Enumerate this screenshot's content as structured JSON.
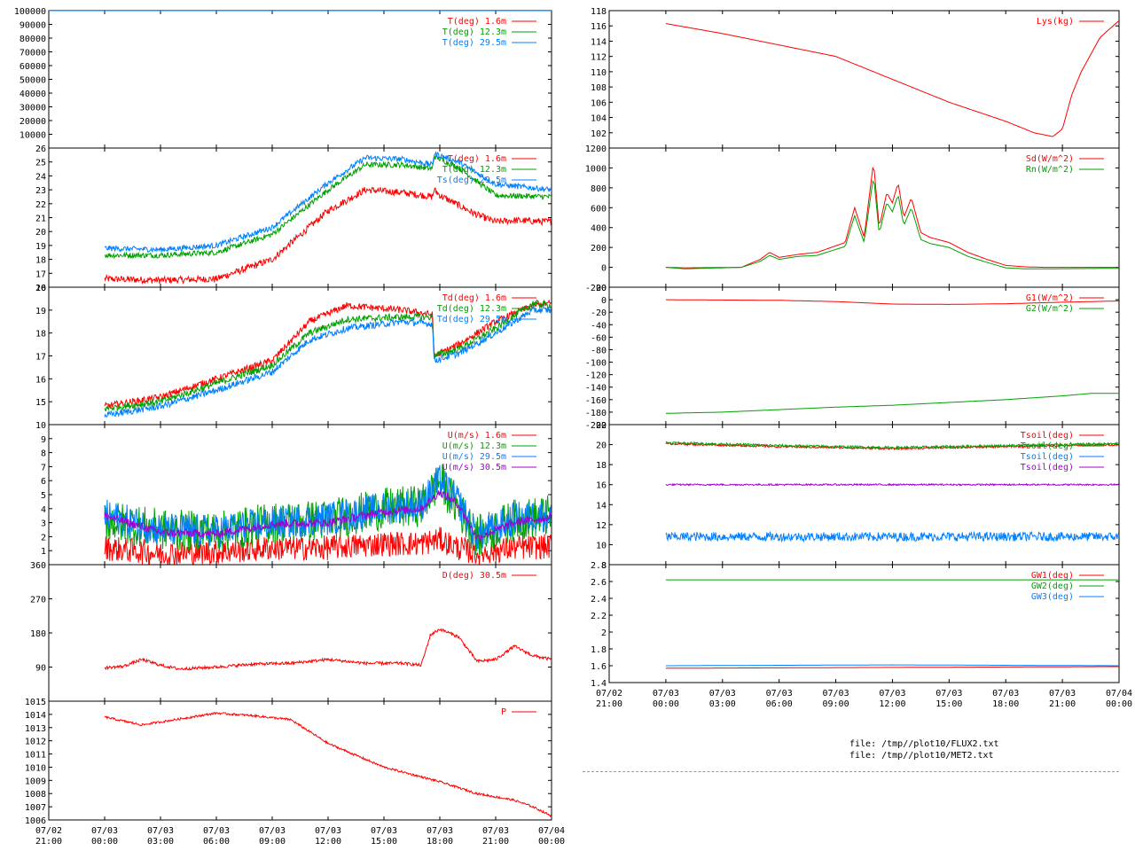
{
  "files": [
    "file: /tmp//plot10/FLUX2.txt",
    "file: /tmp//plot10/MET2.txt"
  ],
  "colors": {
    "red": "#ff0000",
    "green": "#00a000",
    "blue": "#0080ff",
    "purple": "#a000d0",
    "frame": "#000000"
  },
  "chart_data": [
    {
      "type": "line",
      "column": "left",
      "row": 0,
      "ylim": [
        0,
        100000
      ],
      "yticks": [
        "10000",
        "20000",
        "30000",
        "40000",
        "50000",
        "60000",
        "70000",
        "80000",
        "90000",
        "100000"
      ],
      "xlim": [
        -3,
        24
      ],
      "series": [
        {
          "name": "T(deg)  1.6m",
          "color": "red",
          "x": [
            0,
            24
          ],
          "y": [
            0,
            0
          ]
        },
        {
          "name": "T(deg) 12.3m",
          "color": "green",
          "x": [
            0,
            24
          ],
          "y": [
            0,
            0
          ]
        },
        {
          "name": "T(deg) 29.5m",
          "color": "blue",
          "x": [
            -3,
            24
          ],
          "y": [
            100000,
            100000
          ]
        }
      ]
    },
    {
      "type": "line",
      "column": "left",
      "row": 1,
      "ylim": [
        16,
        26
      ],
      "yticks": [
        "16",
        "17",
        "18",
        "19",
        "20",
        "21",
        "22",
        "23",
        "24",
        "25",
        "26"
      ],
      "xlim": [
        -3,
        24
      ],
      "series": [
        {
          "name": "T(deg)  1.6m",
          "color": "red",
          "noise": 0.25,
          "x": [
            0,
            3,
            6,
            9,
            12,
            14,
            16,
            17.6,
            17.7,
            18,
            20,
            21,
            22,
            24
          ],
          "y": [
            16.6,
            16.5,
            16.6,
            18,
            21.5,
            23,
            22.8,
            22.5,
            23,
            22.6,
            21.2,
            20.7,
            20.8,
            20.7
          ]
        },
        {
          "name": "T(deg) 12.3m",
          "color": "green",
          "noise": 0.2,
          "x": [
            0,
            3,
            6,
            9,
            12,
            14,
            16,
            17.6,
            17.7,
            19,
            21,
            24
          ],
          "y": [
            18.3,
            18.3,
            18.5,
            19.8,
            23,
            24.8,
            24.8,
            24.5,
            25.4,
            24.6,
            22.6,
            22.5
          ]
        },
        {
          "name": "Ts(deg) 29.5m",
          "color": "blue",
          "noise": 0.2,
          "x": [
            0,
            3,
            6,
            9,
            12,
            14,
            16,
            17.6,
            17.7,
            19,
            21,
            24
          ],
          "y": [
            18.8,
            18.7,
            19,
            20.3,
            23.5,
            25.3,
            25.2,
            24.8,
            25.6,
            25,
            23.4,
            23
          ]
        }
      ]
    },
    {
      "type": "line",
      "column": "left",
      "row": 2,
      "ylim": [
        14,
        20
      ],
      "yticks": [
        "15",
        "16",
        "17",
        "18",
        "19",
        "20"
      ],
      "xlim": [
        -3,
        24
      ],
      "series": [
        {
          "name": "Td(deg)  1.6m",
          "color": "red",
          "noise": 0.15,
          "x": [
            0,
            3,
            6,
            9,
            11,
            13,
            16,
            17.6,
            17.7,
            19,
            21,
            23,
            24
          ],
          "y": [
            14.8,
            15.2,
            16,
            16.8,
            18.5,
            19.2,
            19,
            18.8,
            17,
            17.5,
            18.5,
            19.2,
            19.3
          ]
        },
        {
          "name": "Td(deg) 12.3m",
          "color": "green",
          "noise": 0.15,
          "x": [
            0,
            3,
            6,
            9,
            11,
            13,
            16,
            17.6,
            17.7,
            19,
            21,
            23,
            24
          ],
          "y": [
            14.7,
            15,
            15.8,
            16.6,
            18,
            18.6,
            18.7,
            18.7,
            17,
            17.3,
            18.2,
            19.3,
            19.2
          ]
        },
        {
          "name": "Td(deg) 29.5m",
          "color": "blue",
          "noise": 0.15,
          "x": [
            0,
            3,
            6,
            9,
            11,
            13,
            16,
            17.6,
            17.7,
            19,
            21,
            23,
            24
          ],
          "y": [
            14.4,
            14.8,
            15.5,
            16.3,
            17.7,
            18.2,
            18.5,
            18.4,
            16.8,
            17.1,
            18,
            19,
            19
          ]
        }
      ]
    },
    {
      "type": "line",
      "column": "left",
      "row": 3,
      "ylim": [
        0,
        10
      ],
      "yticks": [
        "1",
        "2",
        "3",
        "4",
        "5",
        "6",
        "7",
        "8",
        "9",
        "10"
      ],
      "xlim": [
        -3,
        24
      ],
      "series": [
        {
          "name": "U(m/s)  1.6m",
          "color": "red",
          "noise": 0.9,
          "x": [
            0,
            3,
            6,
            9,
            12,
            15,
            17,
            18,
            19,
            20,
            22,
            24
          ],
          "y": [
            1.2,
            0.8,
            0.9,
            1.2,
            1.2,
            1.5,
            1.5,
            1.8,
            1.2,
            0.8,
            1.2,
            1.3
          ]
        },
        {
          "name": "U(m/s) 12.3m",
          "color": "green",
          "noise": 1.5,
          "x": [
            0,
            3,
            6,
            9,
            12,
            15,
            17,
            18,
            19,
            20,
            22,
            24
          ],
          "y": [
            3.2,
            2.5,
            2.3,
            3,
            3.2,
            4,
            4.2,
            6,
            4,
            2,
            3.2,
            3.5
          ]
        },
        {
          "name": "U(m/s) 29.5m",
          "color": "blue",
          "noise": 1.2,
          "x": [
            0,
            3,
            6,
            9,
            12,
            15,
            17,
            18,
            19,
            20,
            22,
            24
          ],
          "y": [
            3.5,
            2.5,
            2.4,
            3,
            3.3,
            4,
            4.3,
            6,
            4.5,
            2,
            3.3,
            3.6
          ]
        },
        {
          "name": "U(m/s) 30.5m",
          "color": "purple",
          "noise": 0.3,
          "x": [
            0,
            3,
            6,
            9,
            12,
            15,
            17,
            18,
            19,
            20,
            22,
            24
          ],
          "y": [
            3.5,
            2.3,
            2.2,
            2.9,
            3,
            3.8,
            4,
            5.2,
            4.3,
            1.9,
            3,
            3.4
          ]
        }
      ]
    },
    {
      "type": "line",
      "column": "left",
      "row": 4,
      "ylim": [
        0,
        360
      ],
      "yticks": [
        "90",
        "180",
        "270",
        "360"
      ],
      "xlim": [
        -3,
        24
      ],
      "series": [
        {
          "name": "D(deg)  30.5m",
          "color": "red",
          "noise": 4,
          "x": [
            0,
            1,
            2,
            3,
            4,
            6,
            8,
            10,
            12,
            14,
            16,
            17,
            17.5,
            18,
            19,
            20,
            21,
            22,
            23,
            24
          ],
          "y": [
            88,
            92,
            110,
            95,
            85,
            90,
            98,
            100,
            110,
            100,
            100,
            95,
            175,
            190,
            170,
            105,
            110,
            145,
            120,
            110
          ]
        }
      ]
    },
    {
      "type": "line",
      "column": "left",
      "row": 5,
      "ylim": [
        1006,
        1015
      ],
      "yticks": [
        "1006",
        "1007",
        "1008",
        "1009",
        "1010",
        "1011",
        "1012",
        "1013",
        "1014",
        "1015"
      ],
      "xlim": [
        -3,
        24
      ],
      "series": [
        {
          "name": "P",
          "color": "red",
          "noise": 0.08,
          "x": [
            0,
            2,
            6,
            8,
            10,
            12,
            15,
            18,
            20,
            22,
            23,
            24
          ],
          "y": [
            1013.8,
            1013.2,
            1014.1,
            1013.9,
            1013.6,
            1011.8,
            1010,
            1008.9,
            1008,
            1007.5,
            1007,
            1006.3
          ]
        }
      ]
    },
    {
      "type": "line",
      "column": "right",
      "row": 0,
      "ylim": [
        100,
        118
      ],
      "yticks": [
        "102",
        "104",
        "106",
        "108",
        "110",
        "112",
        "114",
        "116",
        "118"
      ],
      "xlim": [
        -3,
        24
      ],
      "series": [
        {
          "name": "Lys(kg)",
          "color": "red",
          "x": [
            0,
            3,
            6,
            9,
            12,
            15,
            18,
            19.5,
            20.5,
            21,
            21.5,
            22,
            23,
            24
          ],
          "y": [
            116.3,
            115,
            113.5,
            112,
            109,
            106,
            103.5,
            102,
            101.5,
            102.5,
            107,
            110,
            114.5,
            116.7
          ]
        }
      ]
    },
    {
      "type": "line",
      "column": "right",
      "row": 1,
      "ylim": [
        -200,
        1200
      ],
      "yticks": [
        "-200",
        "0",
        "200",
        "400",
        "600",
        "800",
        "1000",
        "1200"
      ],
      "xlim": [
        -3,
        24
      ],
      "series": [
        {
          "name": "Sd(W/m^2)",
          "color": "red",
          "noise": 0,
          "x": [
            0,
            1,
            4,
            5,
            5.5,
            6,
            7,
            8,
            9.5,
            10,
            10.5,
            11,
            11.3,
            11.7,
            12,
            12.3,
            12.6,
            13,
            13.5,
            14,
            15,
            16,
            17,
            18,
            19,
            20,
            24
          ],
          "y": [
            0,
            -5,
            0,
            80,
            150,
            100,
            130,
            150,
            250,
            600,
            300,
            1060,
            400,
            750,
            650,
            850,
            500,
            700,
            350,
            300,
            250,
            150,
            80,
            20,
            5,
            0,
            0
          ]
        },
        {
          "name": "Rn(W/m^2)",
          "color": "green",
          "noise": 0,
          "x": [
            0,
            1,
            4,
            5,
            5.5,
            6,
            7,
            8,
            9.5,
            10,
            10.5,
            11,
            11.3,
            11.7,
            12,
            12.3,
            12.6,
            13,
            13.5,
            14,
            15,
            16,
            17,
            18,
            19,
            20,
            24
          ],
          "y": [
            0,
            -15,
            0,
            60,
            120,
            80,
            110,
            120,
            210,
            520,
            250,
            920,
            340,
            650,
            560,
            730,
            420,
            600,
            280,
            240,
            200,
            110,
            50,
            -5,
            -15,
            -15,
            -10
          ]
        }
      ]
    },
    {
      "type": "line",
      "column": "right",
      "row": 2,
      "ylim": [
        -200,
        20
      ],
      "yticks": [
        "-200",
        "-180",
        "-160",
        "-140",
        "-120",
        "-100",
        "-80",
        "-60",
        "-40",
        "-20",
        "0",
        "20"
      ],
      "xlim": [
        -3,
        24
      ],
      "series": [
        {
          "name": "G1(W/m^2)",
          "color": "red",
          "x": [
            0,
            6,
            9,
            12,
            15,
            18,
            21,
            24
          ],
          "y": [
            0,
            -1,
            -3,
            -7,
            -7.5,
            -6.5,
            -4,
            -2
          ]
        },
        {
          "name": "G2(W/m^2)",
          "color": "green",
          "x": [
            0,
            3,
            6,
            9,
            12,
            14,
            18,
            21,
            22.5,
            24
          ],
          "y": [
            -182,
            -180,
            -176,
            -172,
            -169,
            -166,
            -160,
            -154,
            -150,
            -150
          ]
        }
      ]
    },
    {
      "type": "line",
      "column": "right",
      "row": 3,
      "ylim": [
        8,
        22
      ],
      "yticks": [
        "8",
        "10",
        "12",
        "14",
        "16",
        "18",
        "20",
        "22"
      ],
      "xlim": [
        -3,
        24
      ],
      "series": [
        {
          "name": "Tsoil(deg)",
          "color": "red",
          "noise": 0.1,
          "x": [
            0,
            6,
            12,
            18,
            24
          ],
          "y": [
            20.1,
            19.8,
            19.6,
            19.8,
            20
          ]
        },
        {
          "name": "Tsoil(deg)",
          "color": "green",
          "noise": 0.12,
          "x": [
            0,
            6,
            12,
            18,
            24
          ],
          "y": [
            20.2,
            19.9,
            19.7,
            19.9,
            20.1
          ]
        },
        {
          "name": "Tsoil(deg)",
          "color": "blue",
          "noise": 0.45,
          "x": [
            0,
            12,
            24
          ],
          "y": [
            10.8,
            10.8,
            10.8
          ]
        },
        {
          "name": "Tsoil(deg)",
          "color": "purple",
          "noise": 0.08,
          "x": [
            0,
            24
          ],
          "y": [
            16,
            16
          ]
        }
      ]
    },
    {
      "type": "line",
      "column": "right",
      "row": 4,
      "ylim": [
        1.4,
        2.8
      ],
      "yticks": [
        "1.4",
        "1.6",
        "1.8",
        "2",
        "2.2",
        "2.4",
        "2.6",
        "2.8"
      ],
      "xlim": [
        -3,
        24
      ],
      "series": [
        {
          "name": "GW1(deg)",
          "color": "red",
          "x": [
            0,
            12,
            24
          ],
          "y": [
            1.57,
            1.58,
            1.59
          ]
        },
        {
          "name": "GW2(deg)",
          "color": "green",
          "x": [
            0,
            24
          ],
          "y": [
            2.62,
            2.62
          ]
        },
        {
          "name": "GW3(deg)",
          "color": "blue",
          "x": [
            0,
            12,
            24
          ],
          "y": [
            1.6,
            1.61,
            1.6
          ]
        }
      ]
    }
  ],
  "x_axis": {
    "left_ticks": [
      [
        "07/02",
        "21:00"
      ],
      [
        "07/03",
        "00:00"
      ],
      [
        "07/03",
        "03:00"
      ],
      [
        "07/03",
        "06:00"
      ],
      [
        "07/03",
        "09:00"
      ],
      [
        "07/03",
        "12:00"
      ],
      [
        "07/03",
        "15:00"
      ],
      [
        "07/03",
        "18:00"
      ],
      [
        "07/03",
        "21:00"
      ],
      [
        "07/04",
        "00:00"
      ]
    ],
    "right_ticks": [
      [
        "07/02",
        "21:00"
      ],
      [
        "07/03",
        "00:00"
      ],
      [
        "07/03",
        "03:00"
      ],
      [
        "07/03",
        "06:00"
      ],
      [
        "07/03",
        "09:00"
      ],
      [
        "07/03",
        "12:00"
      ],
      [
        "07/03",
        "15:00"
      ],
      [
        "07/03",
        "18:00"
      ],
      [
        "07/03",
        "21:00"
      ],
      [
        "07/04",
        "00:00"
      ]
    ],
    "tick_hours": [
      -3,
      0,
      3,
      6,
      9,
      12,
      15,
      18,
      21,
      24
    ]
  }
}
